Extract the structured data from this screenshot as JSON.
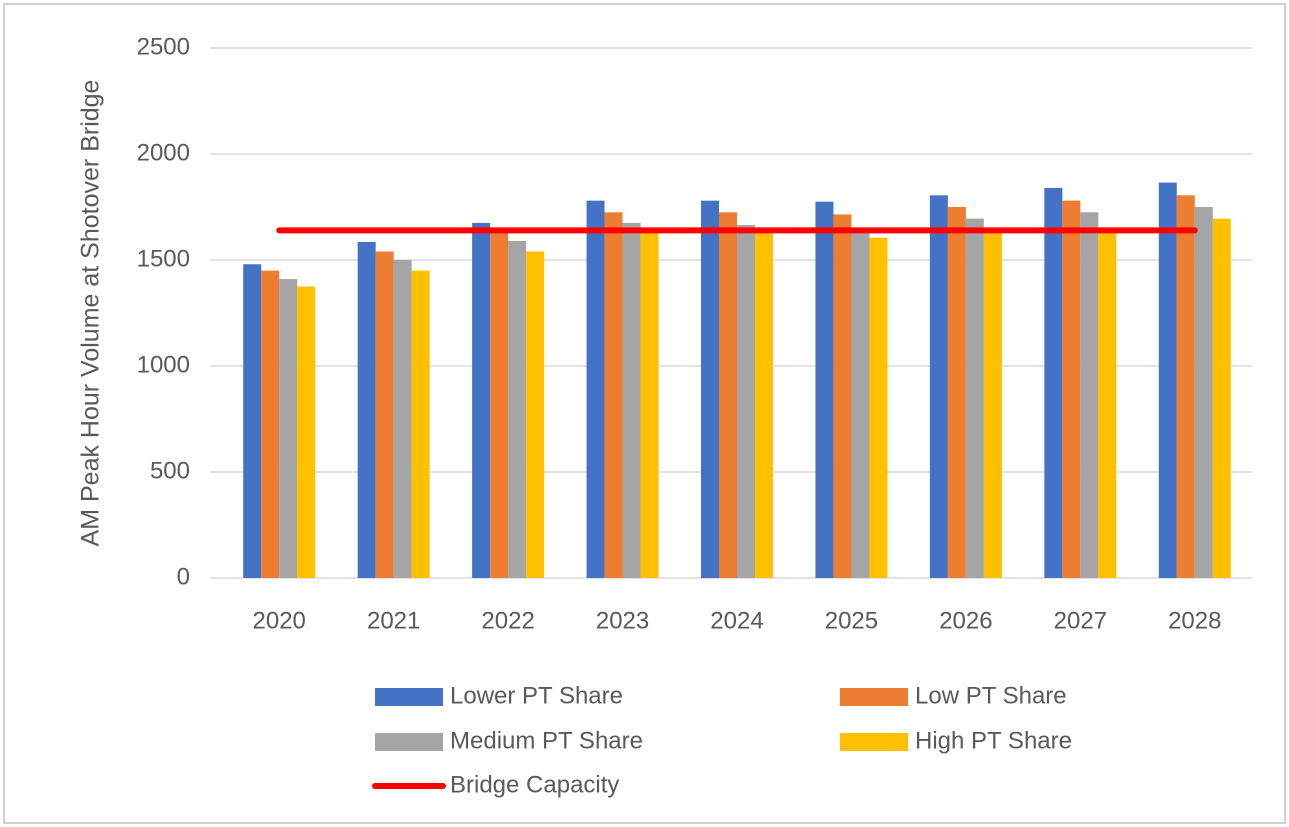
{
  "chart_data": {
    "type": "bar",
    "ylabel": "AM Peak Hour Volume at Shotover Bridge",
    "categories": [
      "2020",
      "2021",
      "2022",
      "2023",
      "2024",
      "2025",
      "2026",
      "2027",
      "2028"
    ],
    "series": [
      {
        "name": "Lower PT Share",
        "color": "#4472c4",
        "values": [
          1480,
          1585,
          1675,
          1780,
          1780,
          1775,
          1805,
          1840,
          1865
        ]
      },
      {
        "name": "Low PT Share",
        "color": "#ed7d31",
        "values": [
          1450,
          1540,
          1640,
          1725,
          1725,
          1715,
          1750,
          1780,
          1805
        ]
      },
      {
        "name": "Medium PT Share",
        "color": "#a5a5a5",
        "values": [
          1410,
          1500,
          1590,
          1675,
          1665,
          1640,
          1695,
          1725,
          1750
        ]
      },
      {
        "name": "High PT Share",
        "color": "#ffc000",
        "values": [
          1375,
          1450,
          1540,
          1640,
          1640,
          1605,
          1645,
          1650,
          1695
        ]
      },
      {
        "name": "Bridge Capacity",
        "color": "#ff0000",
        "type": "line",
        "values": [
          1640,
          1640,
          1640,
          1640,
          1640,
          1640,
          1640,
          1640,
          1640
        ]
      }
    ],
    "ylim": [
      0,
      2500
    ],
    "yticks": [
      0,
      500,
      1000,
      1500,
      2000,
      2500
    ],
    "grid": true
  }
}
